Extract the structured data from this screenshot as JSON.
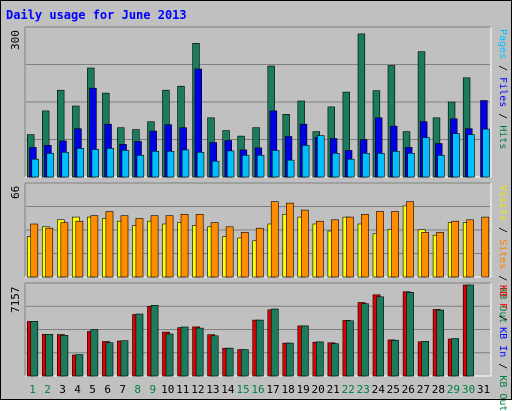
{
  "chart_data": {
    "type": "bar",
    "title": "Daily usage for June 2013",
    "categories": [
      "1",
      "2",
      "3",
      "4",
      "5",
      "6",
      "7",
      "8",
      "9",
      "10",
      "11",
      "12",
      "13",
      "14",
      "15",
      "16",
      "17",
      "18",
      "19",
      "20",
      "21",
      "22",
      "23",
      "24",
      "25",
      "26",
      "27",
      "28",
      "29",
      "30",
      "31"
    ],
    "category_colors": [
      "#008040",
      "#008040",
      "#000000",
      "#000000",
      "#000000",
      "#000000",
      "#000000",
      "#008040",
      "#008040",
      "#000000",
      "#000000",
      "#000000",
      "#000000",
      "#000000",
      "#008040",
      "#008040",
      "#000000",
      "#000000",
      "#000000",
      "#000000",
      "#000000",
      "#008040",
      "#008040",
      "#000000",
      "#000000",
      "#000000",
      "#000000",
      "#000000",
      "#008040",
      "#008040",
      "#000000"
    ],
    "panels": [
      {
        "id": "requests",
        "ymax_label": "300",
        "ylim": [
          0,
          300
        ],
        "legend": [
          {
            "text": "Pages",
            "color": "#00c0ff"
          },
          {
            "text": " / ",
            "color": "#000000"
          },
          {
            "text": "Files",
            "color": "#0000ff"
          },
          {
            "text": " / ",
            "color": "#000000"
          },
          {
            "text": "Hits",
            "color": "#008040"
          }
        ],
        "series": [
          {
            "name": "Hits",
            "color": "#1a7c5c",
            "values": [
              86,
              134,
              176,
              144,
              221,
              170,
              100,
              96,
              112,
              176,
              184,
              271,
              120,
              94,
              83,
              100,
              225,
              127,
              154,
              92,
              142,
              172,
              290,
              175,
              226,
              92,
              254,
              120,
              152,
              201,
              null
            ]
          },
          {
            "name": "Files",
            "color": "#0000e6",
            "values": [
              60,
              64,
              73,
              98,
              180,
              107,
              66,
              72,
              93,
              106,
              100,
              219,
              70,
              74,
              55,
              59,
              134,
              82,
              107,
              80,
              78,
              54,
              76,
              120,
              103,
              60,
              112,
              68,
              118,
              98,
              155
            ]
          },
          {
            "name": "Pages",
            "color": "#00bfff",
            "values": [
              36,
              48,
              50,
              58,
              56,
              58,
              54,
              44,
              52,
              52,
              55,
              50,
              32,
              53,
              44,
              44,
              54,
              34,
              64,
              84,
              48,
              36,
              48,
              48,
              52,
              48,
              80,
              44,
              88,
              86,
              97
            ]
          }
        ]
      },
      {
        "id": "visitors",
        "ymax_label": "66",
        "ylim": [
          0,
          66
        ],
        "legend": [
          {
            "text": "Visits",
            "color": "#e8e800"
          },
          {
            "text": " / ",
            "color": "#000000"
          },
          {
            "text": "Sites",
            "color": "#ff8000"
          },
          {
            "text": " / ",
            "color": "#000000"
          },
          {
            "text": "KB Out",
            "color": "#008040"
          }
        ],
        "series": [
          {
            "name": "Visits",
            "color": "#ffff00",
            "values": [
              29,
              36,
              41,
              43,
              43,
              42,
              40,
              37,
              40,
              38,
              39,
              37,
              36,
              29,
              28,
              26,
              38,
              45,
              43,
              38,
              33,
              43,
              38,
              31,
              34,
              51,
              34,
              30,
              39,
              39,
              null
            ]
          },
          {
            "name": "Sites",
            "color": "#ff8c00",
            "values": [
              38,
              35,
              39,
              40,
              44,
              47,
              44,
              42,
              44,
              44,
              45,
              45,
              39,
              36,
              32,
              35,
              54,
              53,
              48,
              40,
              41,
              43,
              45,
              47,
              47,
              54,
              32,
              32,
              40,
              41,
              43
            ]
          }
        ]
      },
      {
        "id": "kbytes",
        "ymax_label": "7157",
        "ylim": [
          0,
          7157
        ],
        "legend": [
          {
            "text": "KB F",
            "color": "#ff0000"
          },
          {
            "text": " / ",
            "color": "#000000"
          },
          {
            "text": "KB In",
            "color": "#0000ff"
          },
          {
            "text": " / ",
            "color": "#000000"
          },
          {
            "text": "KB Out",
            "color": "#008040"
          }
        ],
        "series": [
          {
            "name": "KB F",
            "color": "#e00000",
            "values": [
              4290,
              3280,
              3260,
              1650,
              3500,
              2710,
              2750,
              4840,
              5480,
              3450,
              3810,
              3860,
              3250,
              2190,
              2080,
              4400,
              5210,
              2590,
              3940,
              2660,
              2610,
              4370,
              5780,
              6390,
              2840,
              6630,
              2690,
              5240,
              2910,
              7157,
              null
            ]
          },
          {
            "name": "KB Out",
            "color": "#1a7c5c",
            "values": [
              4300,
              3280,
              3200,
              1680,
              3660,
              2620,
              2780,
              4880,
              5560,
              3300,
              3850,
              3770,
              3160,
              2190,
              2080,
              4400,
              5270,
              2590,
              3940,
              2680,
              2540,
              4340,
              5690,
              6230,
              2810,
              6580,
              2720,
              5180,
              2950,
              7157,
              null
            ]
          }
        ]
      }
    ]
  }
}
